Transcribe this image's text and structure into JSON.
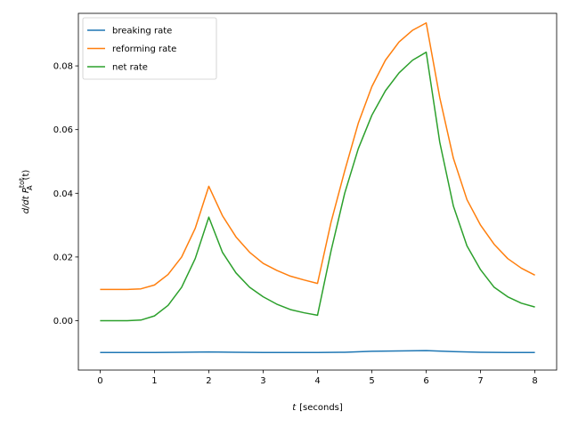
{
  "chart_data": {
    "type": "line",
    "xlabel_var": "t",
    "xlabel_unit": "[seconds]",
    "ylabel_base": "d/dt P",
    "ylabel_sup": "tot",
    "ylabel_sub": "A",
    "ylabel_arg": "(t)",
    "xlim": [
      -0.4,
      8.4
    ],
    "ylim": [
      -0.0155,
      0.0965
    ],
    "xticks": [
      0,
      1,
      2,
      3,
      4,
      5,
      6,
      7,
      8
    ],
    "yticks": [
      0.0,
      0.02,
      0.04,
      0.06,
      0.08
    ],
    "ytick_labels": [
      "0.00",
      "0.02",
      "0.04",
      "0.06",
      "0.08"
    ],
    "grid": false,
    "legend_position": "top-left",
    "series": [
      {
        "name": "breaking rate",
        "color": "#1f77b4",
        "x": [
          0,
          0.5,
          1.0,
          1.5,
          2.0,
          2.5,
          3.0,
          3.5,
          4.0,
          4.5,
          5.0,
          5.5,
          6.0,
          6.5,
          7.0,
          7.5,
          8.0
        ],
        "y": [
          -0.01,
          -0.01,
          -0.01,
          -0.0099,
          -0.0098,
          -0.0099,
          -0.01,
          -0.01,
          -0.01,
          -0.0099,
          -0.0096,
          -0.0095,
          -0.0094,
          -0.0097,
          -0.0099,
          -0.01,
          -0.01
        ]
      },
      {
        "name": "reforming rate",
        "color": "#ff7f0e",
        "x": [
          0,
          0.25,
          0.5,
          0.75,
          1.0,
          1.25,
          1.5,
          1.75,
          2.0,
          2.25,
          2.5,
          2.75,
          3.0,
          3.25,
          3.5,
          3.75,
          4.0,
          4.25,
          4.5,
          4.75,
          5.0,
          5.25,
          5.5,
          5.75,
          6.0,
          6.25,
          6.5,
          6.75,
          7.0,
          7.25,
          7.5,
          7.75,
          8.0
        ],
        "y": [
          0.0098,
          0.0098,
          0.0098,
          0.01,
          0.0112,
          0.0145,
          0.02,
          0.029,
          0.0422,
          0.033,
          0.0263,
          0.0215,
          0.018,
          0.0158,
          0.014,
          0.0128,
          0.0117,
          0.031,
          0.047,
          0.062,
          0.0735,
          0.0818,
          0.0875,
          0.0912,
          0.0935,
          0.07,
          0.051,
          0.038,
          0.03,
          0.024,
          0.0195,
          0.0165,
          0.0143
        ]
      },
      {
        "name": "net rate",
        "color": "#2ca02c",
        "x": [
          0,
          0.25,
          0.5,
          0.75,
          1.0,
          1.25,
          1.5,
          1.75,
          2.0,
          2.25,
          2.5,
          2.75,
          3.0,
          3.25,
          3.5,
          3.75,
          4.0,
          4.25,
          4.5,
          4.75,
          5.0,
          5.25,
          5.5,
          5.75,
          6.0,
          6.25,
          6.5,
          6.75,
          7.0,
          7.25,
          7.5,
          7.75,
          8.0
        ],
        "y": [
          0.0,
          0.0,
          0.0,
          0.0002,
          0.0015,
          0.0048,
          0.0105,
          0.0195,
          0.0325,
          0.0215,
          0.015,
          0.0105,
          0.0075,
          0.0052,
          0.0035,
          0.0025,
          0.0017,
          0.022,
          0.04,
          0.054,
          0.0645,
          0.0722,
          0.0778,
          0.0818,
          0.0843,
          0.056,
          0.036,
          0.0235,
          0.016,
          0.0105,
          0.0075,
          0.0055,
          0.0043
        ]
      }
    ]
  }
}
